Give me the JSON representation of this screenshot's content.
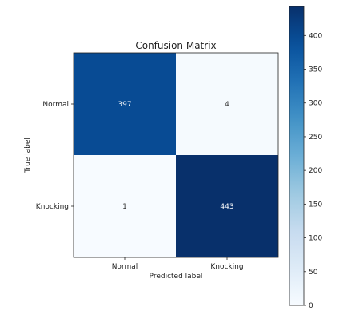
{
  "chart_data": {
    "type": "heatmap",
    "title": "Confusion Matrix",
    "xlabel": "Predicted label",
    "ylabel": "True label",
    "x_categories": [
      "Normal",
      "Knocking"
    ],
    "y_categories": [
      "Normal",
      "Knocking"
    ],
    "values": [
      [
        397,
        4
      ],
      [
        1,
        443
      ]
    ],
    "cell_labels": [
      [
        "397",
        "4"
      ],
      [
        "1",
        "443"
      ]
    ],
    "colormap": "Blues",
    "colorbar": {
      "min": 0,
      "max": 443,
      "ticks": [
        0,
        50,
        100,
        150,
        200,
        250,
        300,
        350,
        400
      ],
      "tick_labels": [
        "0",
        "50",
        "100",
        "150",
        "200",
        "250",
        "300",
        "350",
        "400"
      ]
    },
    "colors": {
      "low": "#f7fbff",
      "high": "#08306b",
      "text_light": "#ffffff",
      "text_dark": "#333333"
    }
  }
}
